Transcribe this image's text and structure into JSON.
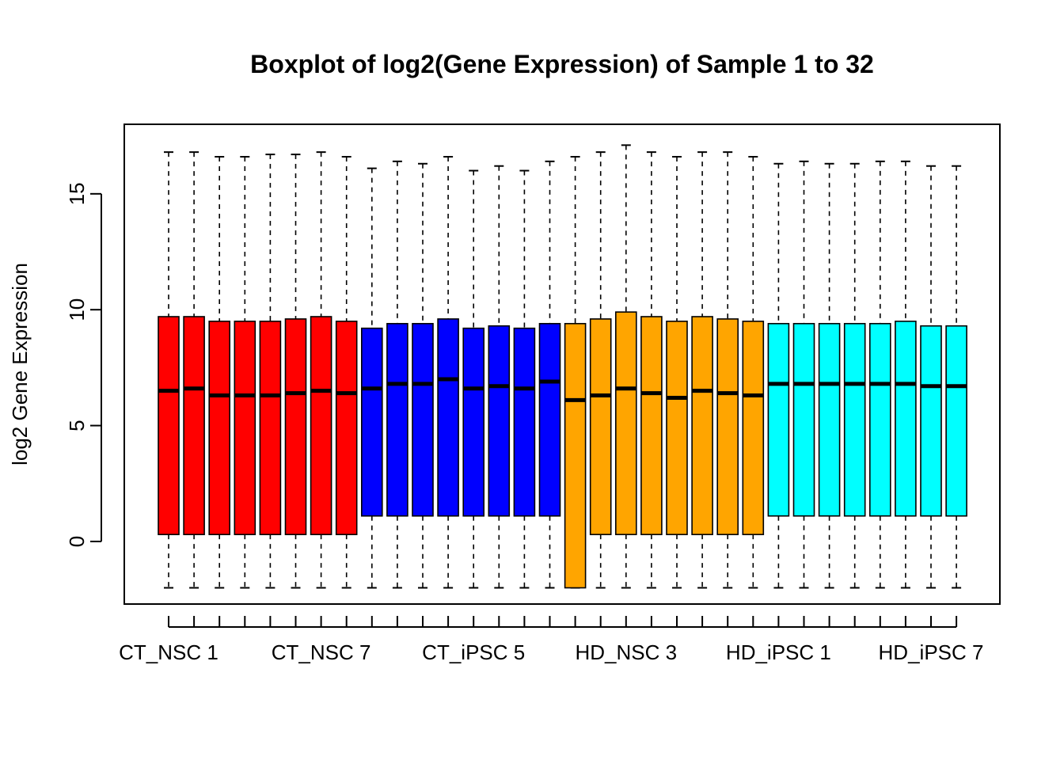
{
  "chart_data": {
    "type": "boxplot",
    "title": "Boxplot of log2(Gene Expression) of Sample 1 to 32",
    "xlabel": "",
    "ylabel": "log2 Gene Expression",
    "ylim": [
      -2.7,
      18.0
    ],
    "yticks": [
      0,
      5,
      10,
      15
    ],
    "grid": false,
    "legend": "none",
    "x_tick_labels": [
      {
        "index": 1,
        "label": "CT_NSC 1"
      },
      {
        "index": 7,
        "label": "CT_NSC 7"
      },
      {
        "index": 13,
        "label": "CT_iPSC 5"
      },
      {
        "index": 19,
        "label": "HD_NSC 3"
      },
      {
        "index": 25,
        "label": "HD_iPSC 1"
      },
      {
        "index": 31,
        "label": "HD_iPSC 7"
      }
    ],
    "groups": [
      {
        "color": "#ff0000",
        "first": 1,
        "last": 8
      },
      {
        "color": "#0000ff",
        "first": 9,
        "last": 16
      },
      {
        "color": "#ffa500",
        "first": 17,
        "last": 24
      },
      {
        "color": "#00ffff",
        "first": 25,
        "last": 32
      }
    ],
    "boxes": [
      {
        "min": -2.0,
        "q1": 0.3,
        "median": 6.5,
        "q3": 9.7,
        "max": 16.8
      },
      {
        "min": -2.0,
        "q1": 0.3,
        "median": 6.6,
        "q3": 9.7,
        "max": 16.8
      },
      {
        "min": -2.0,
        "q1": 0.3,
        "median": 6.3,
        "q3": 9.5,
        "max": 16.6
      },
      {
        "min": -2.0,
        "q1": 0.3,
        "median": 6.3,
        "q3": 9.5,
        "max": 16.6
      },
      {
        "min": -2.0,
        "q1": 0.3,
        "median": 6.3,
        "q3": 9.5,
        "max": 16.7
      },
      {
        "min": -2.0,
        "q1": 0.3,
        "median": 6.4,
        "q3": 9.6,
        "max": 16.7
      },
      {
        "min": -2.0,
        "q1": 0.3,
        "median": 6.5,
        "q3": 9.7,
        "max": 16.8
      },
      {
        "min": -2.0,
        "q1": 0.3,
        "median": 6.4,
        "q3": 9.5,
        "max": 16.6
      },
      {
        "min": -2.0,
        "q1": 1.1,
        "median": 6.6,
        "q3": 9.2,
        "max": 16.1
      },
      {
        "min": -2.0,
        "q1": 1.1,
        "median": 6.8,
        "q3": 9.4,
        "max": 16.4
      },
      {
        "min": -2.0,
        "q1": 1.1,
        "median": 6.8,
        "q3": 9.4,
        "max": 16.3
      },
      {
        "min": -2.0,
        "q1": 1.1,
        "median": 7.0,
        "q3": 9.6,
        "max": 16.6
      },
      {
        "min": -2.0,
        "q1": 1.1,
        "median": 6.6,
        "q3": 9.2,
        "max": 16.0
      },
      {
        "min": -2.0,
        "q1": 1.1,
        "median": 6.7,
        "q3": 9.3,
        "max": 16.2
      },
      {
        "min": -2.0,
        "q1": 1.1,
        "median": 6.6,
        "q3": 9.2,
        "max": 16.0
      },
      {
        "min": -2.0,
        "q1": 1.1,
        "median": 6.9,
        "q3": 9.4,
        "max": 16.4
      },
      {
        "min": -2.0,
        "q1": -2.0,
        "median": 6.1,
        "q3": 9.4,
        "max": 16.6
      },
      {
        "min": -2.0,
        "q1": 0.3,
        "median": 6.3,
        "q3": 9.6,
        "max": 16.8
      },
      {
        "min": -2.0,
        "q1": 0.3,
        "median": 6.6,
        "q3": 9.9,
        "max": 17.1
      },
      {
        "min": -2.0,
        "q1": 0.3,
        "median": 6.4,
        "q3": 9.7,
        "max": 16.8
      },
      {
        "min": -2.0,
        "q1": 0.3,
        "median": 6.2,
        "q3": 9.5,
        "max": 16.6
      },
      {
        "min": -2.0,
        "q1": 0.3,
        "median": 6.5,
        "q3": 9.7,
        "max": 16.8
      },
      {
        "min": -2.0,
        "q1": 0.3,
        "median": 6.4,
        "q3": 9.6,
        "max": 16.8
      },
      {
        "min": -2.0,
        "q1": 0.3,
        "median": 6.3,
        "q3": 9.5,
        "max": 16.6
      },
      {
        "min": -2.0,
        "q1": 1.1,
        "median": 6.8,
        "q3": 9.4,
        "max": 16.3
      },
      {
        "min": -2.0,
        "q1": 1.1,
        "median": 6.8,
        "q3": 9.4,
        "max": 16.4
      },
      {
        "min": -2.0,
        "q1": 1.1,
        "median": 6.8,
        "q3": 9.4,
        "max": 16.3
      },
      {
        "min": -2.0,
        "q1": 1.1,
        "median": 6.8,
        "q3": 9.4,
        "max": 16.3
      },
      {
        "min": -2.0,
        "q1": 1.1,
        "median": 6.8,
        "q3": 9.4,
        "max": 16.4
      },
      {
        "min": -2.0,
        "q1": 1.1,
        "median": 6.8,
        "q3": 9.5,
        "max": 16.4
      },
      {
        "min": -2.0,
        "q1": 1.1,
        "median": 6.7,
        "q3": 9.3,
        "max": 16.2
      },
      {
        "min": -2.0,
        "q1": 1.1,
        "median": 6.7,
        "q3": 9.3,
        "max": 16.2
      }
    ]
  }
}
